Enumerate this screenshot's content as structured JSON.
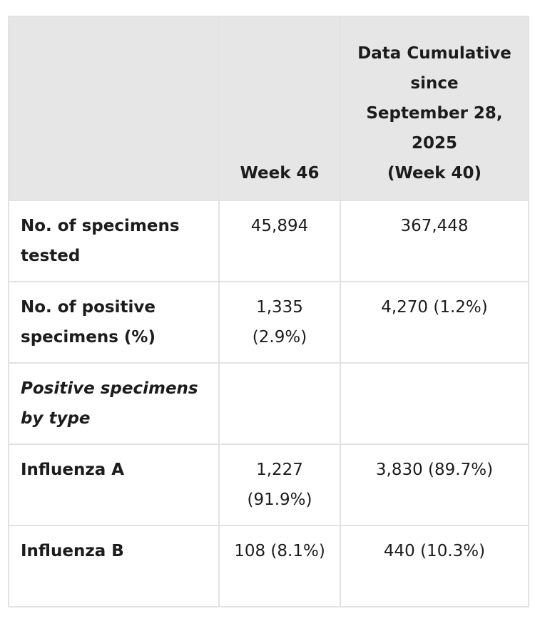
{
  "table": {
    "headers": {
      "week": "Week 46",
      "cumulative": [
        "Data Cumulative",
        "since",
        "September 28,",
        "2025",
        "(Week 40)"
      ]
    },
    "rows": [
      {
        "label": "No. of specimens tested",
        "week": "45,894",
        "cumulative": "367,448",
        "italic": false
      },
      {
        "label": "No. of positive specimens (%)",
        "week": "1,335 (2.9%)",
        "cumulative": "4,270 (1.2%)",
        "italic": false
      },
      {
        "label": "Positive specimens by type",
        "week": "",
        "cumulative": "",
        "italic": true
      },
      {
        "label": "Influenza A",
        "week": "1,227 (91.9%)",
        "cumulative": "3,830 (89.7%)",
        "italic": false
      },
      {
        "label": "Influenza B",
        "week": "108 (8.1%)",
        "cumulative": "440 (10.3%)",
        "italic": false
      }
    ]
  }
}
